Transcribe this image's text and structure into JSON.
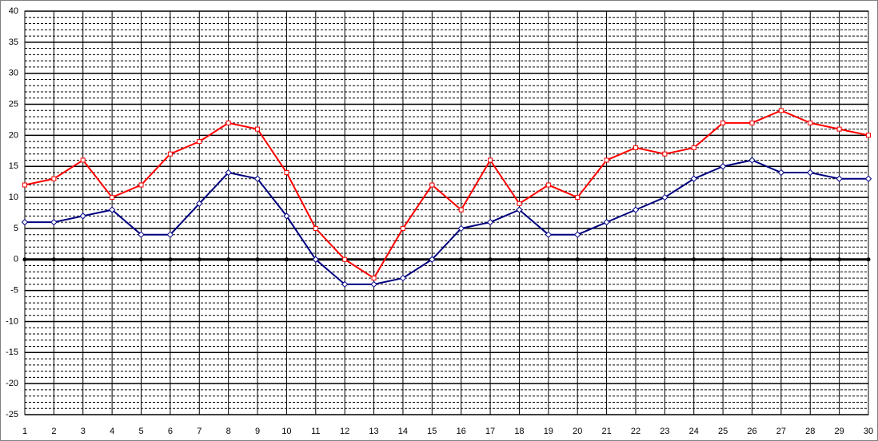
{
  "chart_data": {
    "type": "line",
    "categories": [
      "1",
      "2",
      "3",
      "4",
      "5",
      "6",
      "7",
      "8",
      "9",
      "10",
      "11",
      "12",
      "13",
      "14",
      "15",
      "16",
      "17",
      "18",
      "19",
      "20",
      "21",
      "22",
      "23",
      "24",
      "25",
      "26",
      "27",
      "28",
      "29",
      "30"
    ],
    "series": [
      {
        "color": "#ff0000",
        "marker": "square",
        "values": [
          12,
          13,
          16,
          10,
          12,
          17,
          19,
          22,
          21,
          14,
          5,
          0,
          -3,
          5,
          12,
          8,
          16,
          9,
          12,
          10,
          16,
          18,
          17,
          18,
          22,
          22,
          24,
          22,
          21,
          20
        ]
      },
      {
        "color": "#000080",
        "marker": "diamond",
        "values": [
          6,
          6,
          7,
          8,
          4,
          4,
          9,
          14,
          13,
          7,
          0,
          -4,
          -4,
          -3,
          0,
          5,
          6,
          8,
          4,
          4,
          6,
          8,
          10,
          13,
          15,
          16,
          14,
          14,
          13,
          13
        ]
      }
    ],
    "ylim": [
      -25,
      40
    ],
    "yticks": [
      -25,
      -20,
      -15,
      -10,
      -5,
      0,
      5,
      10,
      15,
      20,
      25,
      30,
      35,
      40
    ],
    "minor_yticks": [
      -24,
      -23,
      -22,
      -21,
      -19,
      -18,
      -17,
      -16,
      -14,
      -13,
      -12,
      -11,
      -9,
      -8,
      -7,
      -6,
      -4,
      -3,
      -2,
      -1,
      1,
      2,
      3,
      4,
      6,
      7,
      8,
      9,
      11,
      12,
      13,
      14,
      16,
      17,
      18,
      19,
      21,
      22,
      23,
      24,
      26,
      27,
      28,
      29,
      31,
      32,
      33,
      34,
      36,
      37,
      38,
      39
    ],
    "grid": true
  }
}
